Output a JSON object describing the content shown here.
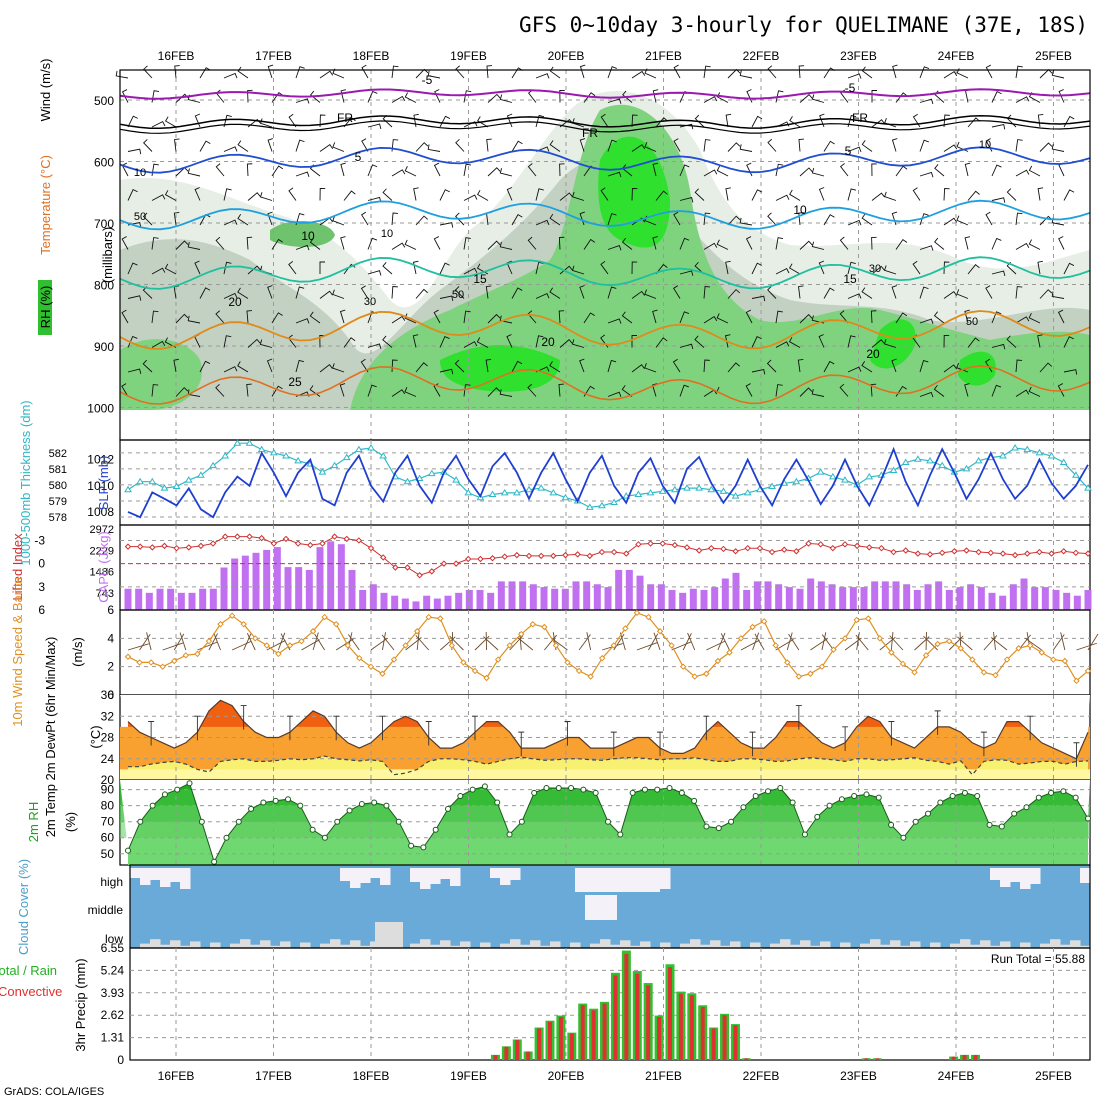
{
  "title": "GFS 0~10day 3-hourly for QUELIMANE (37E, 18S)",
  "footer": "GrADS: COLA/IGES",
  "date_labels": [
    "16FEB",
    "17FEB",
    "18FEB",
    "19FEB",
    "20FEB",
    "21FEB",
    "22FEB",
    "23FEB",
    "24FEB",
    "25FEB"
  ],
  "colors": {
    "rh_green": "#2fbf2f",
    "temp_purple": "#9a1ab0",
    "temp_blue": "#1f4fd0",
    "temp_cyan": "#1ea0e0",
    "temp_teal": "#1fbf9f",
    "temp_orange": "#e08a1a",
    "slp_blue": "#1f3fd0",
    "thick_cyan": "#2fb8c8",
    "lifted_red": "#d03030",
    "cape_violet": "#c070f0",
    "wind_orange": "#e09020",
    "temp_fill_dark": "#f06010",
    "temp_fill_mid": "#f8a030",
    "dew_fill": "#f8f070",
    "cloud_blue": "#6aaad8",
    "cloud_white": "#f4f2f8",
    "precip_green": "#30c030",
    "precip_red": "#e03030"
  },
  "panels": {
    "upper_air": {
      "y_label": "(millibars)",
      "legend_rh": "RH (%)",
      "legend_temp": "Temperature (°C)",
      "legend_wind": "Wind (m/s)",
      "levels": [
        "500",
        "600",
        "700",
        "800",
        "900",
        "1000"
      ],
      "isotherm_labels": [
        "-5",
        "FR",
        "5",
        "10",
        "15",
        "20",
        "25"
      ],
      "rh_labels": [
        "10",
        "30",
        "50"
      ]
    },
    "slp_thickness": {
      "label_thick": "1000-500mb Thickness (dm)",
      "label_slp": "SLP (mb)",
      "thick_ticks": [
        "582",
        "581",
        "580",
        "579",
        "578"
      ],
      "slp_ticks": [
        "1012",
        "1010",
        "1008"
      ]
    },
    "lifted_cape": {
      "label_li": "Lifted Index",
      "label_cape": "CAPE (J/kg)",
      "li_ticks": [
        "-3",
        "0",
        "3",
        "6"
      ],
      "cape_ticks": [
        "2972",
        "2229",
        "1486",
        "743"
      ]
    },
    "wind10m": {
      "label": "10m Wind Speed & Barbs",
      "unit": "(m/s)",
      "ticks": [
        "6",
        "4",
        "2",
        "0"
      ]
    },
    "temp2m": {
      "label": "2m Temp 2m DewPt (6hr Min/Max)",
      "unit": "(°C)",
      "ticks": [
        "36",
        "32",
        "28",
        "24",
        "20"
      ]
    },
    "rh2m": {
      "label": "2m RH",
      "unit": "(%)",
      "ticks": [
        "90",
        "80",
        "70",
        "60",
        "50"
      ]
    },
    "cloud": {
      "label": "Cloud Cover (%)",
      "levels": [
        "high",
        "middle",
        "low"
      ]
    },
    "precip": {
      "label_a": "Total / Rain",
      "label_b": "Convective",
      "unit": "3hr Precip (mm)",
      "ticks": [
        "6.55",
        "5.24",
        "3.93",
        "2.62",
        "1.31",
        "0"
      ],
      "run_total": "Run Total = 55.88"
    }
  },
  "chart_data": [
    {
      "type": "line",
      "name": "SLP",
      "ylim": [
        1007,
        1013.5
      ],
      "values": [
        1008,
        1007.6,
        1009.5,
        1009,
        1008.5,
        1009.8,
        1008.2,
        1007.6,
        1009.5,
        1010.7,
        1010,
        1012.5,
        1011,
        1009.2,
        1011,
        1012,
        1009,
        1008.5,
        1011,
        1012.3,
        1010,
        1008.8,
        1011,
        1012.3,
        1010,
        1008.7,
        1011,
        1012.3,
        1010.5,
        1009.2,
        1011.5,
        1012.5,
        1011,
        1009,
        1011,
        1012.5,
        1010.5,
        1008.8,
        1011,
        1012.3,
        1010,
        1008.7,
        1011,
        1012.1,
        1010,
        1008.7,
        1011.3,
        1012.2,
        1010.2,
        1008.7,
        1010,
        1012,
        1010,
        1008.5,
        1010.5,
        1012,
        1010.4,
        1008.6,
        1010,
        1012,
        1010,
        1008.5,
        1010.5,
        1012.8,
        1010.3,
        1008.5,
        1010.8,
        1012.8,
        1011,
        1009,
        1010.5,
        1012.5,
        1010.5,
        1009,
        1010,
        1012,
        1010.2,
        1009,
        1010,
        1011.6
      ]
    },
    {
      "type": "line",
      "name": "Thickness",
      "ylim": [
        577.5,
        582.8
      ],
      "values": [
        579.7,
        580.2,
        580.2,
        579.8,
        579.9,
        580.3,
        580.6,
        581.2,
        581.8,
        582.6,
        582.6,
        582.2,
        582.0,
        581.8,
        581.5,
        581.3,
        580.8,
        581.2,
        581.7,
        582.2,
        582.3,
        581.8,
        580.5,
        580.2,
        580.4,
        580.7,
        580.8,
        580.3,
        579.5,
        579.2,
        579.4,
        579.5,
        579.5,
        579.7,
        579.8,
        579.5,
        579.2,
        579.0,
        578.6,
        578.7,
        578.9,
        579.3,
        579.4,
        579.5,
        579.6,
        579.7,
        579.8,
        579.8,
        579.7,
        579.6,
        579.3,
        579.5,
        579.7,
        579.9,
        580.1,
        580.2,
        580.4,
        580.8,
        580.5,
        580.3,
        580.0,
        580.5,
        580.6,
        580.9,
        581.4,
        581.6,
        581.5,
        581.2,
        580.8,
        581.0,
        581.5,
        581.7,
        581.8,
        582.3,
        582.2,
        582.0,
        581.8,
        581.4,
        580.6,
        579.8
      ]
    },
    {
      "type": "bar",
      "name": "CAPE",
      "ylim": [
        0,
        2972
      ],
      "values": [
        743,
        743,
        600,
        743,
        743,
        600,
        600,
        743,
        743,
        1486,
        1800,
        1900,
        2000,
        2100,
        2200,
        1500,
        1500,
        1400,
        2200,
        2400,
        2300,
        1400,
        700,
        900,
        600,
        500,
        400,
        300,
        500,
        400,
        500,
        600,
        700,
        700,
        600,
        1000,
        1000,
        1000,
        900,
        800,
        743,
        743,
        1000,
        1000,
        900,
        800,
        1400,
        1400,
        1200,
        900,
        900,
        700,
        600,
        743,
        700,
        800,
        1100,
        1300,
        700,
        1000,
        1000,
        900,
        800,
        743,
        1100,
        1000,
        900,
        800,
        800,
        800,
        1000,
        1000,
        1000,
        900,
        700,
        900,
        1000,
        700,
        800,
        900,
        800,
        600,
        500,
        900,
        1100,
        800,
        800,
        700,
        600,
        500,
        700
      ]
    },
    {
      "type": "line",
      "name": "Lifted Index",
      "ylim": [
        6,
        -5
      ],
      "values": [
        -2.2,
        -2.2,
        -2.1,
        -2.3,
        -2,
        -2.1,
        -2.3,
        -2.6,
        -3.5,
        -3.5,
        -3.5,
        -3.3,
        -2.6,
        -3.2,
        -2.6,
        -2.4,
        -2.6,
        -3.5,
        -3.2,
        -3,
        -2,
        -0.8,
        0.5,
        0.5,
        1.5,
        1,
        0,
        0,
        -0.6,
        -0.6,
        -0.7,
        -0.9,
        -1.1,
        -1,
        -1,
        -1,
        -1.1,
        -1.2,
        -1,
        -1.5,
        -1.5,
        -1.3,
        -2.5,
        -2.6,
        -2.6,
        -2.4,
        -2.1,
        -1.7,
        -2,
        -1.9,
        -1.6,
        -2,
        -2,
        -1.5,
        -1.8,
        -1.6,
        -2.6,
        -2.5,
        -2,
        -2.5,
        -2.3,
        -2.1,
        -2,
        -1.5,
        -1.7,
        -1.3,
        -1.2,
        -1.4,
        -1.6,
        -1.7,
        -1.5,
        -1.4,
        -1.3,
        -1.1,
        -1.3,
        -1.5,
        -1.3,
        -1.6,
        -1.4,
        -1.3
      ]
    },
    {
      "type": "line",
      "name": "10m Wind Speed",
      "ylim": [
        0,
        6
      ],
      "values": [
        2.7,
        2.3,
        2.3,
        2.0,
        2.4,
        2.8,
        2.9,
        3.8,
        5.0,
        5.6,
        5.0,
        4.0,
        3.5,
        2.9,
        3.5,
        3.8,
        4.5,
        5.5,
        5.0,
        3.5,
        2.6,
        2.0,
        1.5,
        2.5,
        3.5,
        4.5,
        5.5,
        5.4,
        3.5,
        2.3,
        1.7,
        1.2,
        2.5,
        3.5,
        4.3,
        5.0,
        4.8,
        3.5,
        2.3,
        1.7,
        1.3,
        2.6,
        3.5,
        4.7,
        5.8,
        5.5,
        4.5,
        3.5,
        2.0,
        1.3,
        1.5,
        2.4,
        3.0,
        4.0,
        4.8,
        5.2,
        3.5,
        2.3,
        1.3,
        1.5,
        2.0,
        3.2,
        4.0,
        5.3,
        5.4,
        4.0,
        3.0,
        2.2,
        1.6,
        2.8,
        3.6,
        3.8,
        3.3,
        2.5,
        1.6,
        1.4,
        2.5,
        3.3,
        3.5,
        3.0,
        2.5,
        2.4,
        1.0,
        1.7
      ]
    },
    {
      "type": "area",
      "name": "2m Temp",
      "ylim": [
        20,
        36
      ],
      "values": [
        31,
        29,
        28,
        27,
        26,
        27,
        29,
        33,
        35,
        34,
        31,
        29,
        28,
        28,
        29,
        31,
        33,
        32,
        29,
        27,
        26,
        27,
        29,
        31,
        32,
        31,
        28,
        26,
        26,
        27,
        29,
        31,
        31,
        29,
        26,
        26,
        26,
        27,
        28,
        28,
        26,
        26,
        26,
        27,
        28,
        28,
        26,
        25,
        25,
        26,
        29,
        31,
        29,
        27,
        26,
        26,
        28,
        31,
        31,
        29,
        27,
        26,
        27,
        30,
        32,
        31,
        28,
        27,
        26,
        28,
        30,
        30,
        29,
        27,
        26,
        27,
        31,
        31,
        29,
        27,
        26,
        25,
        24,
        29
      ]
    },
    {
      "type": "line",
      "name": "2m DewPt",
      "ylim": [
        20,
        36
      ],
      "values": [
        22.5,
        22.5,
        23,
        23.3,
        23.5,
        23,
        22,
        21.5,
        23.5,
        23.8,
        24,
        23.5,
        23.5,
        23.7,
        24,
        23.8,
        24,
        24.5,
        24,
        23.8,
        23.6,
        23.8,
        23.5,
        21,
        21.3,
        22,
        23.5,
        24,
        24,
        23.8,
        23.5,
        23,
        23.5,
        24,
        24.3,
        24,
        23.7,
        23.8,
        24,
        24,
        23.8,
        23.7,
        24,
        24.2,
        24.2,
        24,
        23.8,
        24,
        24,
        24.2,
        23.8,
        23.5,
        23.5,
        24,
        24,
        23.8,
        23.5,
        23.6,
        24,
        24.2,
        24,
        23.8,
        23.5,
        24,
        24,
        23.7,
        23.8,
        24,
        24.2,
        23.7,
        23.5,
        23,
        23.6,
        21,
        23.5,
        23.8,
        23.7,
        23,
        23.2,
        23.5,
        23.5,
        23,
        23.5,
        23.6
      ]
    },
    {
      "type": "area",
      "name": "2m RH",
      "ylim": [
        43,
        96
      ],
      "values": [
        52,
        70,
        80,
        87,
        90,
        94,
        70,
        45,
        60,
        70,
        78,
        82,
        83,
        84,
        80,
        65,
        60,
        70,
        77,
        81,
        82,
        80,
        70,
        55,
        54,
        65,
        78,
        86,
        90,
        92,
        82,
        62,
        70,
        88,
        91,
        91,
        91,
        90,
        88,
        70,
        62,
        88,
        90,
        90,
        91,
        88,
        83,
        67,
        66,
        70,
        79,
        86,
        89,
        91,
        82,
        62,
        73,
        80,
        84,
        86,
        87,
        85,
        68,
        60,
        70,
        75,
        82,
        86,
        88,
        86,
        68,
        67,
        75,
        79,
        85,
        88,
        89,
        85,
        72
      ]
    },
    {
      "type": "bar",
      "name": "3hr Precip",
      "ylim": [
        0,
        6.55
      ],
      "values": [
        0,
        0,
        0,
        0,
        0,
        0,
        0,
        0,
        0,
        0,
        0,
        0,
        0,
        0,
        0,
        0,
        0,
        0,
        0,
        0,
        0,
        0,
        0,
        0,
        0,
        0,
        0,
        0,
        0,
        0,
        0,
        0,
        0,
        0.3,
        0.8,
        1.2,
        0.5,
        1.9,
        2.3,
        2.6,
        1.6,
        3.3,
        3.0,
        3.4,
        5.1,
        6.4,
        5.2,
        4.5,
        2.6,
        5.6,
        4.0,
        3.9,
        3.2,
        1.9,
        2.7,
        2.1,
        0.1,
        0,
        0,
        0,
        0,
        0,
        0,
        0,
        0,
        0,
        0,
        0.1,
        0.1,
        0,
        0,
        0,
        0,
        0,
        0,
        0.2,
        0.3,
        0.3,
        0,
        0,
        0,
        0,
        0,
        0,
        0,
        0,
        0,
        0
      ]
    }
  ]
}
